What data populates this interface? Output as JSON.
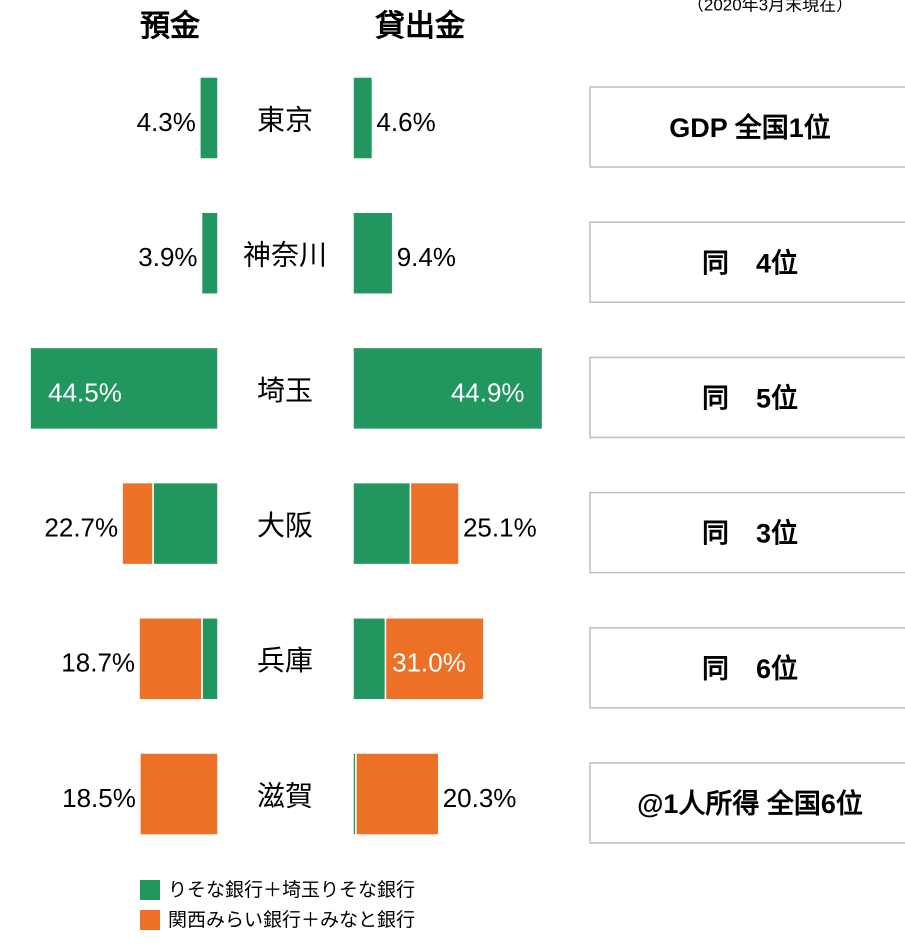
{
  "note": "（2020年3月末現在）",
  "rank_boxes": [
    "GDP 全国1位",
    "同　4位",
    "同　5位",
    "同　3位",
    "同　6位",
    "@1人所得 全国6位"
  ],
  "chart_data": [
    {
      "type": "bar",
      "orientation": "horizontal",
      "direction": "left",
      "title": "預金",
      "categories": [
        "東京",
        "神奈川",
        "埼玉",
        "大阪",
        "兵庫",
        "滋賀"
      ],
      "series": [
        {
          "name": "りそな銀行＋埼玉りそな銀行",
          "color": "#21965f",
          "values": [
            4.3,
            3.9,
            44.5,
            15.4,
            3.8,
            0
          ]
        },
        {
          "name": "関西みらい銀行＋みなと銀行",
          "color": "#ec7025",
          "values": [
            0,
            0,
            0,
            7.3,
            14.9,
            18.5
          ]
        }
      ],
      "totals": {
        "values": [
          4.3,
          3.9,
          44.5,
          22.7,
          18.7,
          18.5
        ],
        "value_labels": [
          "4.3%",
          "3.9%",
          "44.5%",
          "22.7%",
          "18.7%",
          "18.5%"
        ]
      },
      "xlim": [
        0,
        45
      ]
    },
    {
      "type": "bar",
      "orientation": "horizontal",
      "direction": "right",
      "title": "貸出金",
      "categories": [
        "東京",
        "神奈川",
        "埼玉",
        "大阪",
        "兵庫",
        "滋賀"
      ],
      "series": [
        {
          "name": "りそな銀行＋埼玉りそな銀行",
          "color": "#21965f",
          "values": [
            4.6,
            9.4,
            44.9,
            13.6,
            7.7,
            0.7
          ]
        },
        {
          "name": "関西みらい銀行＋みなと銀行",
          "color": "#ec7025",
          "values": [
            0,
            0,
            0,
            11.5,
            23.3,
            19.6
          ]
        }
      ],
      "totals": {
        "values": [
          4.6,
          9.4,
          44.9,
          25.1,
          31.0,
          20.3
        ],
        "value_labels": [
          "4.6%",
          "9.4%",
          "44.9%",
          "25.1%",
          "31.0%",
          "20.3%"
        ]
      },
      "xlim": [
        0,
        45
      ]
    }
  ]
}
